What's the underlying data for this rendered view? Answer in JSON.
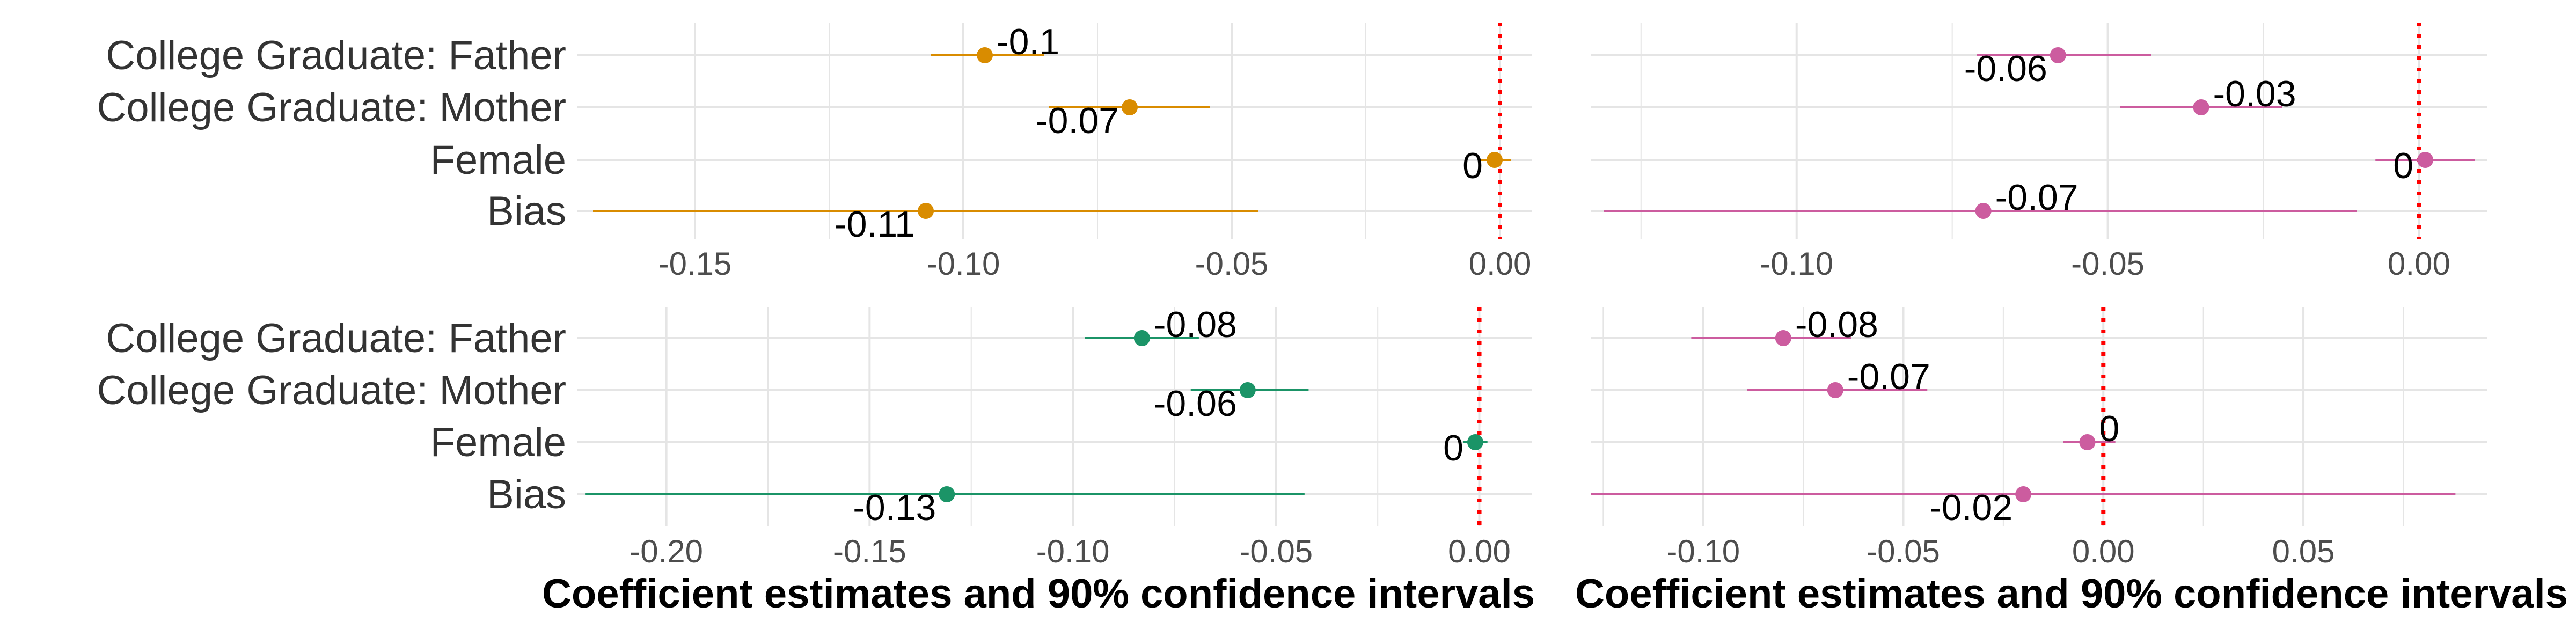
{
  "chart_data": [
    {
      "type": "forest",
      "panel": "top-left",
      "categories": [
        "College Graduate: Father",
        "College Graduate: Mother",
        "Female",
        "Bias"
      ],
      "estimates": [
        -0.096,
        -0.069,
        -0.001,
        -0.107
      ],
      "ci_low": [
        -0.106,
        -0.084,
        -0.004,
        -0.169
      ],
      "ci_high": [
        -0.085,
        -0.054,
        0.002,
        -0.045
      ],
      "labels": [
        "-0.1",
        "-0.07",
        "0",
        "-0.11"
      ],
      "label_pos": [
        "right",
        "below",
        "left",
        "below"
      ],
      "xlim": [
        -0.172,
        0.006
      ],
      "xticks": [
        -0.15,
        -0.1,
        -0.05,
        0.0
      ],
      "xtick_labels": [
        "-0.15",
        "-0.10",
        "-0.05",
        "0.00"
      ],
      "xlabel": "",
      "reference_line": 0,
      "color": "#D98C00",
      "grid": true
    },
    {
      "type": "forest",
      "panel": "top-right",
      "categories": [
        "College Graduate: Father",
        "College Graduate: Mother",
        "Female",
        "Bias"
      ],
      "estimates": [
        -0.058,
        -0.035,
        0.001,
        -0.07
      ],
      "ci_low": [
        -0.071,
        -0.048,
        -0.007,
        -0.131
      ],
      "ci_high": [
        -0.043,
        -0.022,
        0.009,
        -0.01
      ],
      "labels": [
        "-0.06",
        "-0.03",
        "0",
        "-0.07"
      ],
      "label_pos": [
        "below",
        "right",
        "left",
        "right"
      ],
      "xlim": [
        -0.133,
        0.011
      ],
      "xticks": [
        -0.1,
        -0.05,
        0.0
      ],
      "xtick_labels": [
        "-0.10",
        "-0.05",
        "0.00"
      ],
      "xlabel": "Coefficient estimates and 90% confidence intervals",
      "reference_line": 0,
      "color": "#CC5C9F",
      "grid": true
    },
    {
      "type": "forest",
      "panel": "bottom-left",
      "categories": [
        "College Graduate: Father",
        "College Graduate: Mother",
        "Female",
        "Bias"
      ],
      "estimates": [
        -0.083,
        -0.057,
        -0.001,
        -0.131
      ],
      "ci_low": [
        -0.097,
        -0.071,
        -0.004,
        -0.22
      ],
      "ci_high": [
        -0.069,
        -0.042,
        0.002,
        -0.043
      ],
      "labels": [
        "-0.08",
        "-0.06",
        "0",
        "-0.13"
      ],
      "label_pos": [
        "right",
        "below",
        "left",
        "below"
      ],
      "xlim": [
        -0.222,
        0.013
      ],
      "xticks": [
        -0.2,
        -0.15,
        -0.1,
        -0.05,
        0.0
      ],
      "xtick_labels": [
        "-0.20",
        "-0.15",
        "-0.10",
        "-0.05",
        "0.00"
      ],
      "xlabel": "Coefficient estimates and 90% confidence intervals",
      "reference_line": 0,
      "color": "#1B9467",
      "grid": true
    },
    {
      "type": "forest",
      "panel": "bottom-right",
      "categories": [
        "College Graduate: Father",
        "College Graduate: Mother",
        "Female",
        "Bias"
      ],
      "estimates": [
        -0.08,
        -0.067,
        -0.004,
        -0.02
      ],
      "ci_low": [
        -0.103,
        -0.089,
        -0.01,
        -0.128
      ],
      "ci_high": [
        -0.063,
        -0.044,
        0.003,
        0.088
      ],
      "labels": [
        "-0.08",
        "-0.07",
        "0",
        "-0.02"
      ],
      "label_pos": [
        "right",
        "right",
        "right",
        "below"
      ],
      "xlim": [
        -0.128,
        0.096
      ],
      "xticks": [
        -0.1,
        -0.05,
        0.0,
        0.05
      ],
      "xtick_labels": [
        "-0.10",
        "-0.05",
        "0.00",
        "0.05"
      ],
      "xlabel": "Coefficient estimates and 90% confidence intervals",
      "reference_line": 0,
      "color": "#CC5C9F",
      "grid": true
    }
  ],
  "style": {
    "grid_color": "#e5e5e5",
    "reference_color": "#ff0000",
    "background": "#ffffff"
  }
}
